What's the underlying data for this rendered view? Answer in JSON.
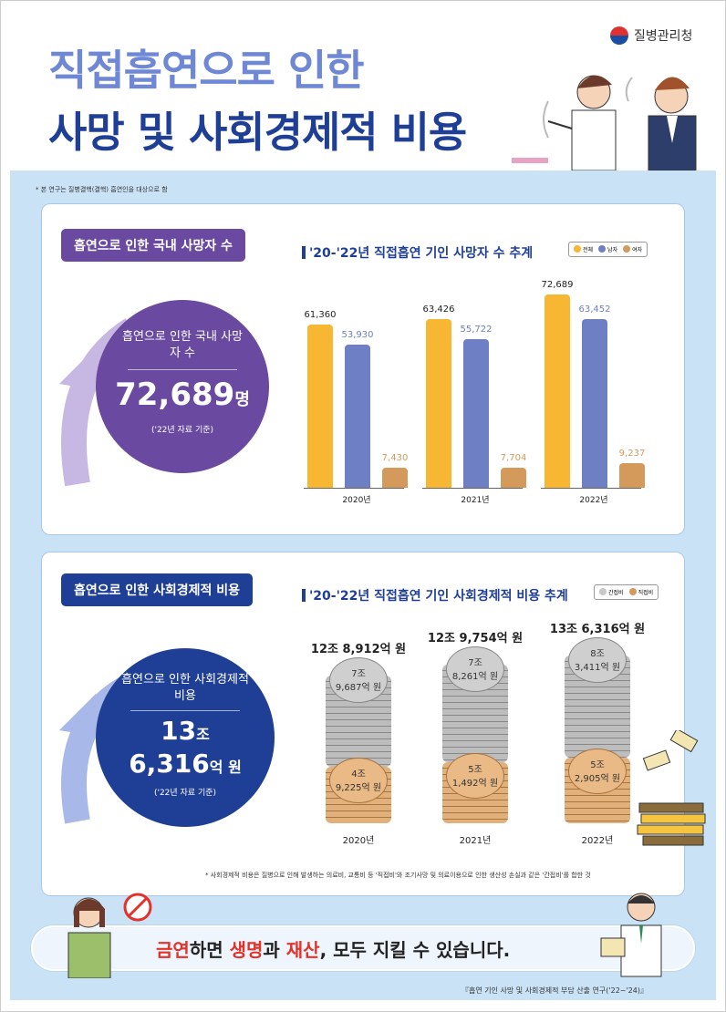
{
  "header": {
    "title_line1": "직접흡연으로 인한",
    "title_line2": "사망 및 사회경제적 비용",
    "agency": "질병관리청"
  },
  "note_top": "* 본 연구는 질병결핵(결핵) 흡연인을 대상으로 함",
  "deaths": {
    "pill": "흡연으로 인한 국내 사망자 수",
    "circle_sub": "흡연으로 인한 국내 사망자 수",
    "circle_value": "72,689",
    "circle_unit": "명",
    "circle_ref": "('22년 자료 기준)",
    "chart_title": "'20-'22년 직접흡연 기인 사망자 수 추계",
    "legend": [
      "전체",
      "남자",
      "여자"
    ]
  },
  "costs": {
    "pill": "흡연으로 인한 사회경제적 비용",
    "circle_sub": "흡연으로 인한 사회경제적 비용",
    "circle_value1": "13",
    "circle_unit1": "조",
    "circle_value2": "6,316",
    "circle_unit2": "억 원",
    "circle_ref": "('22년 자료 기준)",
    "chart_title": "'20-'22년 직접흡연 기인 사회경제적 비용 추계",
    "legend": [
      "간접비",
      "직접비"
    ],
    "footnote": "* 사회경제적 비용은 질병으로 인해 발생하는 의료비, 교통비 등 '직접비'와 조기사망 및 의료이용으로 인한 생산성 손실과 같은 '간접비'를 합한 것"
  },
  "slogan": {
    "p1": "금연",
    "p2": "하면 ",
    "p3": "생명",
    "p4": "과 ",
    "p5": "재산",
    "p6": ", 모두 지킬 수 있습니다."
  },
  "source": "『흡연 기인 사망 및 사회경제적 부담 산출 연구('22~'24)』",
  "colors": {
    "total": "#f7b733",
    "male": "#6f7fc4",
    "female": "#d49a5c",
    "navy": "#1f3f96",
    "purple": "#6a4aa0"
  },
  "chart_data": [
    {
      "type": "bar",
      "title": "'20-'22년 직접흡연 기인 사망자 수 추계",
      "categories": [
        "2020년",
        "2021년",
        "2022년"
      ],
      "series": [
        {
          "name": "전체",
          "values": [
            61360,
            63426,
            72689
          ],
          "labels": [
            "61,360",
            "63,426",
            "72,689"
          ]
        },
        {
          "name": "남자",
          "values": [
            53930,
            55722,
            63452
          ],
          "labels": [
            "53,930",
            "55,722",
            "63,452"
          ]
        },
        {
          "name": "여자",
          "values": [
            7430,
            7704,
            9237
          ],
          "labels": [
            "7,430",
            "7,704",
            "9,237"
          ]
        }
      ],
      "ylim": [
        0,
        80000
      ]
    },
    {
      "type": "bar",
      "title": "'20-'22년 직접흡연 기인 사회경제적 비용 추계",
      "categories": [
        "2020년",
        "2021년",
        "2022년"
      ],
      "totals": [
        "12조 8,912억 원",
        "12조 9,754억 원",
        "13조 6,316억 원"
      ],
      "series": [
        {
          "name": "간접비",
          "labels": [
            [
              "7조",
              "9,687억 원"
            ],
            [
              "7조",
              "8,261억 원"
            ],
            [
              "8조",
              "3,411억 원"
            ]
          ]
        },
        {
          "name": "직접비",
          "labels": [
            [
              "4조",
              "9,225억 원"
            ],
            [
              "5조",
              "1,492억 원"
            ],
            [
              "5조",
              "2,905억 원"
            ]
          ]
        }
      ]
    }
  ]
}
